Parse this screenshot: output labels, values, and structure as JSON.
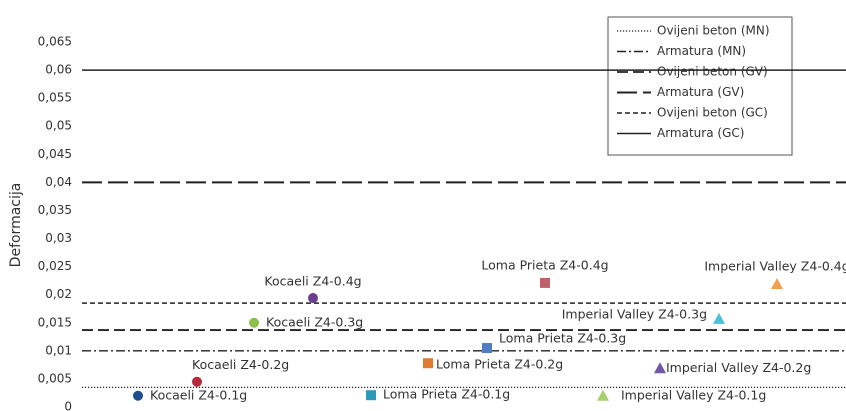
{
  "chart_data": {
    "type": "scatter",
    "ylabel": "Deformacija",
    "ylim": [
      0,
      0.065
    ],
    "yticks": [
      0,
      {
        "value": 0.005,
        "label": "0,005"
      },
      {
        "value": 0.01,
        "label": "0,01"
      },
      {
        "value": 0.015,
        "label": "0,015"
      },
      {
        "value": 0.02,
        "label": "0,02"
      },
      {
        "value": 0.025,
        "label": "0,025"
      },
      {
        "value": 0.03,
        "label": "0,03"
      },
      {
        "value": 0.035,
        "label": "0,035"
      },
      {
        "value": 0.04,
        "label": "0,04"
      },
      {
        "value": 0.045,
        "label": "0,045"
      },
      {
        "value": 0.05,
        "label": "0,05"
      },
      {
        "value": 0.055,
        "label": "0,055"
      },
      {
        "value": 0.06,
        "label": "0,06"
      },
      {
        "value": 0.065,
        "label": "0,065"
      }
    ],
    "series": [
      {
        "name": "Kocaeli Z4-0.1g",
        "color": "#1f4e8c",
        "marker": "circle",
        "values": [
          0.002
        ]
      },
      {
        "name": "Kocaeli Z4-0.2g",
        "color": "#b52a3a",
        "marker": "circle",
        "values": [
          0.0045
        ]
      },
      {
        "name": "Kocaeli Z4-0.3g",
        "color": "#8cc04a",
        "marker": "circle",
        "values": [
          0.015
        ]
      },
      {
        "name": "Kocaeli Z4-0.4g",
        "color": "#6a3d8f",
        "marker": "circle",
        "values": [
          0.0194
        ]
      },
      {
        "name": "Loma Prieta Z4-0.1g",
        "color": "#2b9bb5",
        "marker": "square",
        "values": [
          0.0021
        ]
      },
      {
        "name": "Loma Prieta Z4-0.2g",
        "color": "#e07a2e",
        "marker": "square",
        "values": [
          0.0078
        ]
      },
      {
        "name": "Loma Prieta Z4-0.3g",
        "color": "#4f7ec0",
        "marker": "square",
        "values": [
          0.0105
        ]
      },
      {
        "name": "Loma Prieta Z4-0.4g",
        "color": "#c0606a",
        "marker": "square",
        "values": [
          0.0221
        ]
      },
      {
        "name": "Imperial Valley Z4-0.1g",
        "color": "#a6d06a",
        "marker": "triangle",
        "values": [
          0.002
        ]
      },
      {
        "name": "Imperial Valley Z4-0.2g",
        "color": "#7057a8",
        "marker": "triangle",
        "values": [
          0.0069
        ]
      },
      {
        "name": "Imperial Valley Z4-0.3g",
        "color": "#4cc0d8",
        "marker": "triangle",
        "values": [
          0.0157
        ]
      },
      {
        "name": "Imperial Valley Z4-0.4g",
        "color": "#f0a050",
        "marker": "triangle",
        "values": [
          0.0219
        ]
      }
    ],
    "lines": [
      {
        "name": "Ovijeni beton (MN)",
        "dash": "dotted",
        "value": 0.0035
      },
      {
        "name": "Armatura (MN)",
        "dash": "dashdot",
        "value": 0.01
      },
      {
        "name": "Ovijeni beton (GV)",
        "dash": "dashed",
        "value": 0.0137
      },
      {
        "name": "Armatura (GV)",
        "dash": "longdash",
        "value": 0.04
      },
      {
        "name": "Ovijeni beton (GC)",
        "dash": "shortdash",
        "value": 0.0185
      },
      {
        "name": "Armatura (GC)",
        "dash": "solid",
        "value": 0.06
      }
    ]
  }
}
